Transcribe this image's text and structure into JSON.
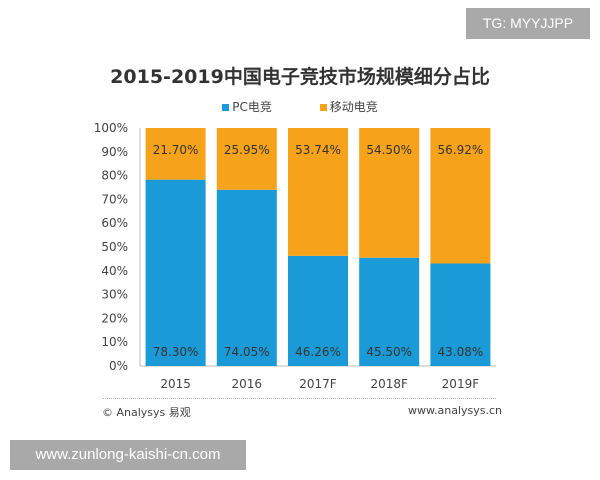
{
  "chart_data": {
    "type": "bar",
    "stacked": true,
    "title": "2015-2019中国电子竞技市场规模细分占比",
    "categories": [
      "2015",
      "2016",
      "2017F",
      "2018F",
      "2019F"
    ],
    "series": [
      {
        "name": "PC电竞",
        "color": "#1a9ad6",
        "values": [
          78.3,
          74.05,
          46.26,
          45.5,
          43.08
        ],
        "labels": [
          "78.30%",
          "74.05%",
          "46.26%",
          "45.50%",
          "43.08%"
        ]
      },
      {
        "name": "移动电竞",
        "color": "#f7a21b",
        "values": [
          21.7,
          25.95,
          53.74,
          54.5,
          56.92
        ],
        "labels": [
          "21.70%",
          "25.95%",
          "53.74%",
          "54.50%",
          "56.92%"
        ]
      }
    ],
    "ylim": [
      0,
      100
    ],
    "yticks": [
      "0%",
      "10%",
      "20%",
      "30%",
      "40%",
      "50%",
      "60%",
      "70%",
      "80%",
      "90%",
      "100%"
    ],
    "legend": "top",
    "grid": false
  },
  "footer": {
    "source": "© Analysys 易观",
    "url": "www.analysys.cn"
  },
  "watermarks": {
    "top": "TG: MYYJJPP",
    "bottom": "www.zunlong-kaishi-cn.com"
  }
}
